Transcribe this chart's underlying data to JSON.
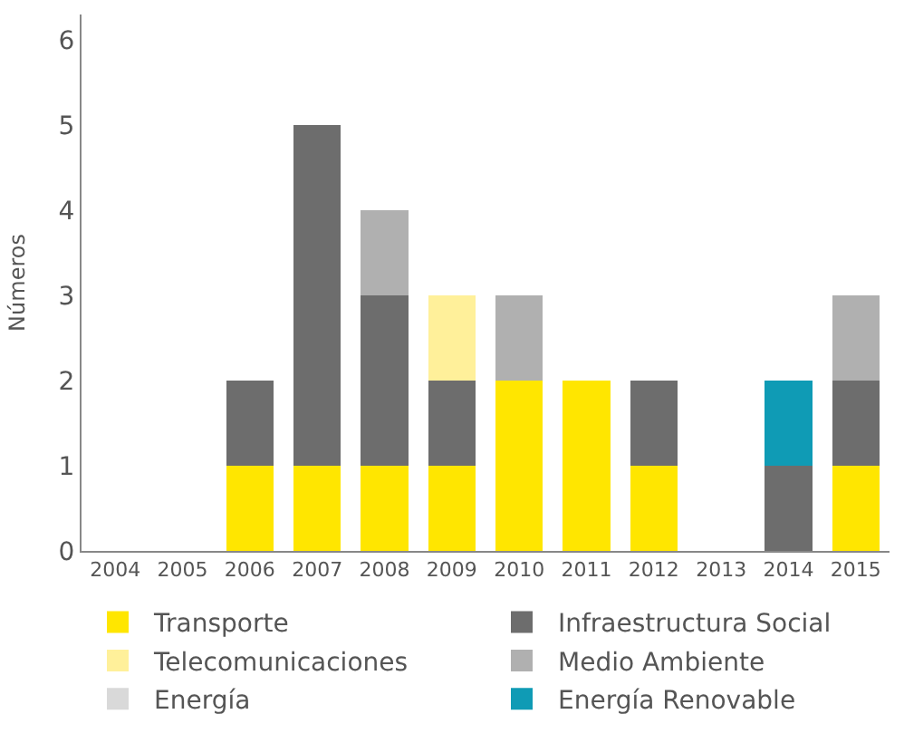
{
  "chart_data": {
    "type": "bar",
    "stacked": true,
    "ylabel": "Números",
    "categories": [
      "2004",
      "2005",
      "2006",
      "2007",
      "2008",
      "2009",
      "2010",
      "2011",
      "2012",
      "2013",
      "2014",
      "2015"
    ],
    "series": [
      {
        "name": "Transporte",
        "color": "#ffe600",
        "values": [
          null,
          null,
          1,
          1,
          1,
          1,
          2,
          2,
          1,
          null,
          null,
          1
        ]
      },
      {
        "name": "Infraestructura Social",
        "color": "#6d6d6d",
        "values": [
          null,
          null,
          1,
          4,
          2,
          1,
          null,
          null,
          1,
          null,
          1,
          1
        ]
      },
      {
        "name": "Telecomunicaciones",
        "color": "#fff09a",
        "values": [
          null,
          null,
          null,
          null,
          null,
          1,
          null,
          null,
          null,
          null,
          null,
          null
        ]
      },
      {
        "name": "Medio Ambiente",
        "color": "#b0b0b0",
        "values": [
          null,
          null,
          null,
          null,
          1,
          null,
          1,
          null,
          null,
          null,
          null,
          1
        ]
      },
      {
        "name": "Energía",
        "color": "#d9d9d9",
        "values": [
          null,
          null,
          null,
          null,
          null,
          null,
          null,
          null,
          null,
          null,
          null,
          null
        ]
      },
      {
        "name": "Energía Renovable",
        "color": "#0f9bb5",
        "values": [
          null,
          null,
          null,
          null,
          null,
          null,
          null,
          null,
          null,
          null,
          1,
          null
        ]
      }
    ],
    "ylim": [
      0,
      6.3
    ],
    "yticks": [
      0,
      1,
      2,
      3,
      4,
      5,
      6
    ],
    "legend": "bottom"
  }
}
